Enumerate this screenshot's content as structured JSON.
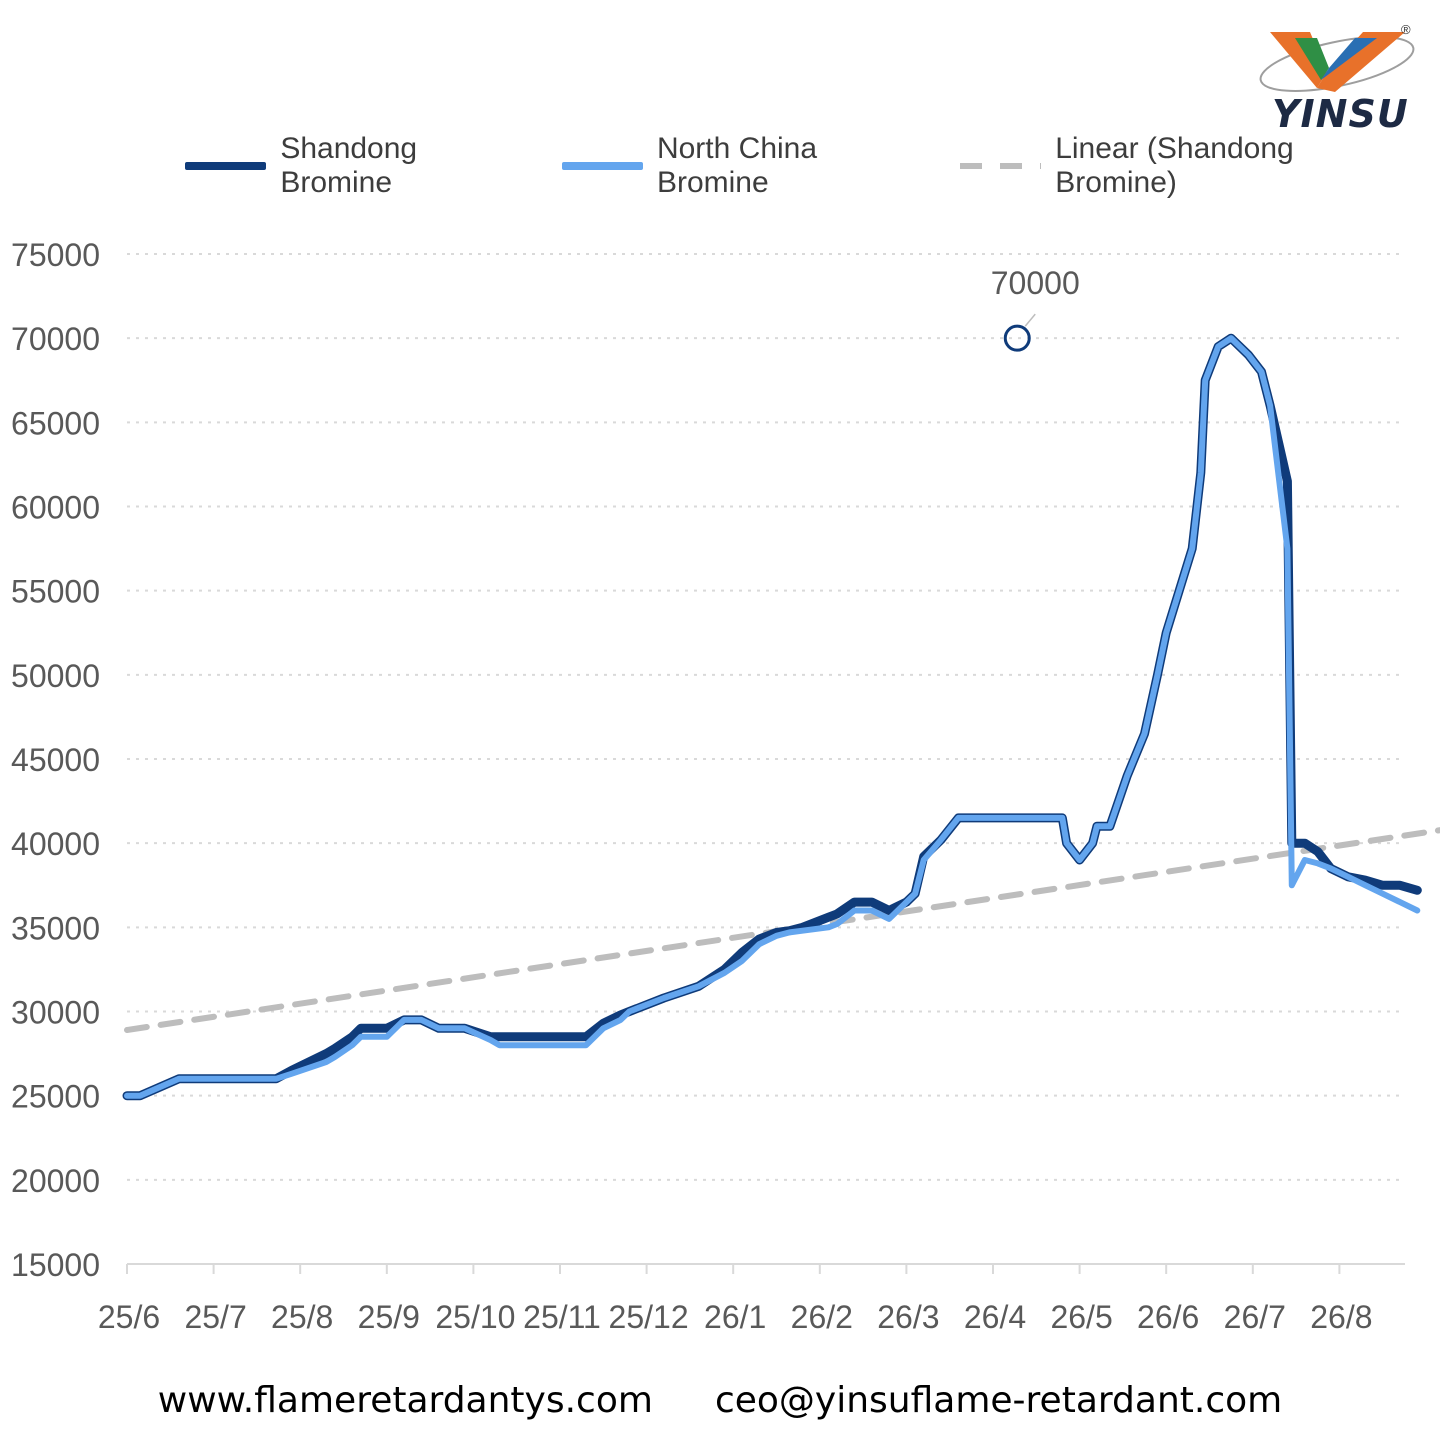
{
  "brand": {
    "name": "YINSU",
    "registered": "®"
  },
  "legend": {
    "series1": "Shandong Bromine",
    "series2": "North China Bromine",
    "trend": "Linear (Shandong Bromine)"
  },
  "footer": {
    "website": "www.flameretardantys.com",
    "email": "ceo@yinsuflame-retardant.com"
  },
  "colors": {
    "shandong": "#0f3b7a",
    "north_china": "#63a5ee",
    "trend": "#bdbdbd",
    "grid": "#d9d9d9",
    "axis_text": "#595959"
  },
  "chart_data": {
    "type": "line",
    "title": "",
    "xlabel": "",
    "ylabel": "",
    "ylim": [
      15000,
      75000
    ],
    "yticks": [
      15000,
      20000,
      25000,
      30000,
      35000,
      40000,
      45000,
      50000,
      55000,
      60000,
      65000,
      70000,
      75000
    ],
    "xlim": [
      0,
      15.2
    ],
    "x_tick_labels": [
      "25/6",
      "25/7",
      "25/8",
      "25/9",
      "25/10",
      "25/11",
      "25/12",
      "26/1",
      "26/2",
      "26/3",
      "26/4",
      "26/5",
      "26/6",
      "26/7",
      "26/8"
    ],
    "grid": true,
    "legend_position": "top",
    "annotation": {
      "label": "70000",
      "x": 10.28,
      "y": 70000
    },
    "series": [
      {
        "name": "Shandong Bromine",
        "points": [
          [
            0,
            25000
          ],
          [
            0.15,
            25000
          ],
          [
            0.6,
            26000
          ],
          [
            1.0,
            26000
          ],
          [
            1.5,
            26000
          ],
          [
            1.72,
            26000
          ],
          [
            1.9,
            26500
          ],
          [
            2.3,
            27500
          ],
          [
            2.4,
            27800
          ],
          [
            2.6,
            28500
          ],
          [
            2.7,
            29000
          ],
          [
            3.0,
            29000
          ],
          [
            3.2,
            29500
          ],
          [
            3.4,
            29500
          ],
          [
            3.6,
            29000
          ],
          [
            3.9,
            29000
          ],
          [
            4.2,
            28500
          ],
          [
            4.3,
            28500
          ],
          [
            4.8,
            28500
          ],
          [
            5.3,
            28500
          ],
          [
            5.5,
            29300
          ],
          [
            5.7,
            29800
          ],
          [
            5.8,
            30000
          ],
          [
            6.2,
            30800
          ],
          [
            6.6,
            31500
          ],
          [
            6.9,
            32500
          ],
          [
            7.1,
            33500
          ],
          [
            7.3,
            34300
          ],
          [
            7.5,
            34700
          ],
          [
            7.65,
            34800
          ],
          [
            7.8,
            35000
          ],
          [
            8.1,
            35600
          ],
          [
            8.2,
            35800
          ],
          [
            8.4,
            36500
          ],
          [
            8.6,
            36500
          ],
          [
            8.8,
            36000
          ],
          [
            9.0,
            36500
          ],
          [
            9.1,
            37000
          ],
          [
            9.2,
            39200
          ],
          [
            9.4,
            40200
          ],
          [
            9.6,
            41500
          ],
          [
            9.9,
            41500
          ],
          [
            10.1,
            41500
          ],
          [
            10.5,
            41500
          ],
          [
            10.8,
            41500
          ],
          [
            10.85,
            40000
          ],
          [
            11.0,
            39000
          ],
          [
            11.15,
            40000
          ],
          [
            11.2,
            41000
          ],
          [
            11.35,
            41000
          ],
          [
            11.55,
            44000
          ],
          [
            11.75,
            46500
          ],
          [
            11.9,
            50000
          ],
          [
            12.0,
            52500
          ],
          [
            12.15,
            55000
          ],
          [
            12.3,
            57500
          ],
          [
            12.4,
            62000
          ],
          [
            12.45,
            67500
          ],
          [
            12.6,
            69500
          ],
          [
            12.75,
            70000
          ],
          [
            12.95,
            69000
          ],
          [
            13.1,
            68000
          ],
          [
            13.2,
            66000
          ],
          [
            13.4,
            61500
          ],
          [
            13.45,
            40000
          ],
          [
            13.6,
            40000
          ],
          [
            13.75,
            39500
          ],
          [
            13.9,
            38500
          ],
          [
            14.1,
            38000
          ],
          [
            14.3,
            37800
          ],
          [
            14.5,
            37500
          ],
          [
            14.7,
            37500
          ],
          [
            14.9,
            37200
          ]
        ]
      },
      {
        "name": "North China Bromine",
        "points": [
          [
            0,
            25000
          ],
          [
            0.15,
            25000
          ],
          [
            0.6,
            26000
          ],
          [
            1.0,
            26000
          ],
          [
            1.5,
            26000
          ],
          [
            1.72,
            26000
          ],
          [
            1.9,
            26300
          ],
          [
            2.3,
            27000
          ],
          [
            2.4,
            27300
          ],
          [
            2.6,
            28000
          ],
          [
            2.7,
            28500
          ],
          [
            3.0,
            28500
          ],
          [
            3.2,
            29500
          ],
          [
            3.4,
            29500
          ],
          [
            3.6,
            29000
          ],
          [
            3.9,
            29000
          ],
          [
            4.2,
            28300
          ],
          [
            4.3,
            28000
          ],
          [
            4.8,
            28000
          ],
          [
            5.3,
            28000
          ],
          [
            5.5,
            29000
          ],
          [
            5.7,
            29500
          ],
          [
            5.8,
            30000
          ],
          [
            6.2,
            30800
          ],
          [
            6.6,
            31500
          ],
          [
            6.9,
            32300
          ],
          [
            7.1,
            33000
          ],
          [
            7.3,
            34000
          ],
          [
            7.5,
            34500
          ],
          [
            7.65,
            34700
          ],
          [
            7.8,
            34800
          ],
          [
            8.1,
            35000
          ],
          [
            8.2,
            35200
          ],
          [
            8.4,
            36000
          ],
          [
            8.6,
            36000
          ],
          [
            8.8,
            35500
          ],
          [
            9.0,
            36500
          ],
          [
            9.1,
            37000
          ],
          [
            9.2,
            39000
          ],
          [
            9.4,
            40200
          ],
          [
            9.6,
            41500
          ],
          [
            9.9,
            41500
          ],
          [
            10.1,
            41500
          ],
          [
            10.5,
            41500
          ],
          [
            10.8,
            41500
          ],
          [
            10.85,
            40000
          ],
          [
            11.0,
            39000
          ],
          [
            11.15,
            40000
          ],
          [
            11.2,
            41000
          ],
          [
            11.35,
            41000
          ],
          [
            11.55,
            44000
          ],
          [
            11.75,
            46500
          ],
          [
            11.9,
            50000
          ],
          [
            12.0,
            52500
          ],
          [
            12.15,
            55000
          ],
          [
            12.3,
            57500
          ],
          [
            12.4,
            62000
          ],
          [
            12.45,
            67500
          ],
          [
            12.6,
            69500
          ],
          [
            12.75,
            70000
          ],
          [
            12.95,
            69000
          ],
          [
            13.1,
            68000
          ],
          [
            13.2,
            66000
          ],
          [
            13.4,
            57500
          ],
          [
            13.45,
            37500
          ],
          [
            13.6,
            39000
          ],
          [
            13.75,
            38800
          ],
          [
            13.9,
            38500
          ],
          [
            14.1,
            38000
          ],
          [
            14.3,
            37500
          ],
          [
            14.5,
            37000
          ],
          [
            14.7,
            36500
          ],
          [
            14.9,
            36000
          ]
        ]
      },
      {
        "name": "Linear (Shandong Bromine)",
        "points": [
          [
            0,
            28900
          ],
          [
            15.2,
            40800
          ]
        ]
      }
    ]
  }
}
